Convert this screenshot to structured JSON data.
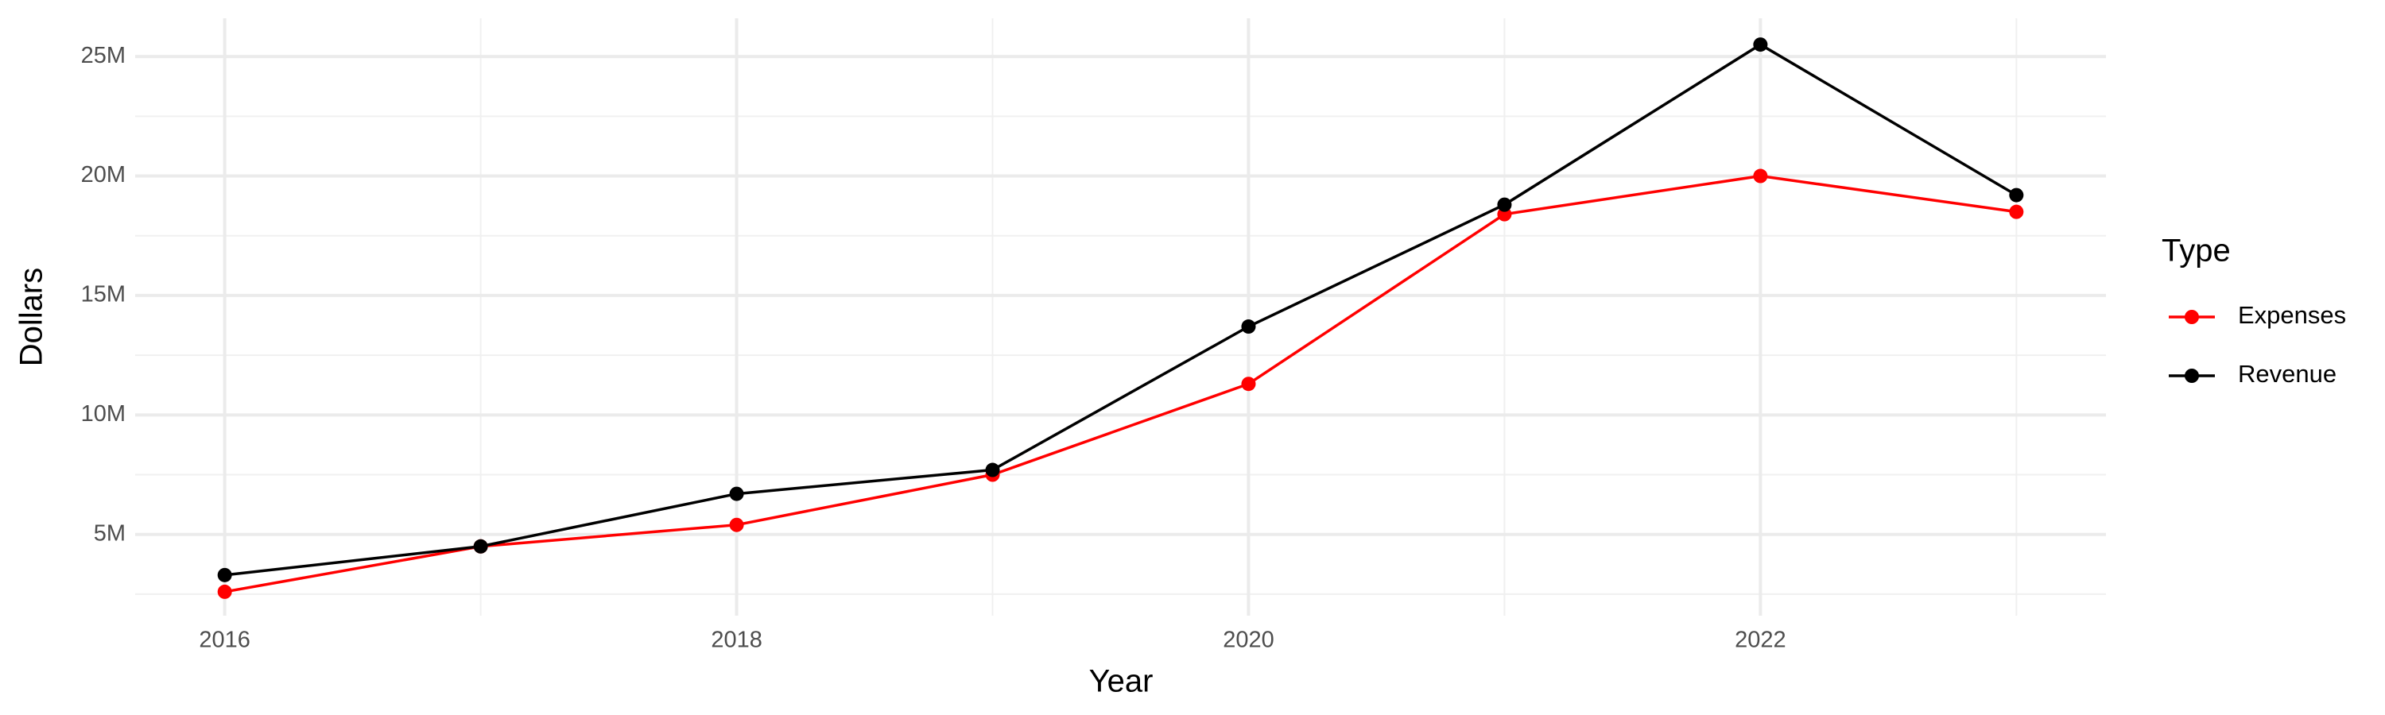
{
  "chart_data": {
    "type": "line",
    "x_label": "Year",
    "y_label": "Dollars",
    "legend_title": "Type",
    "x": [
      2016,
      2017,
      2018,
      2019,
      2020,
      2021,
      2022,
      2023
    ],
    "series": [
      {
        "name": "Expenses",
        "color": "#ff0000",
        "values": [
          2600000,
          4500000,
          5400000,
          7500000,
          11300000,
          18400000,
          20000000,
          18500000
        ]
      },
      {
        "name": "Revenue",
        "color": "#000000",
        "values": [
          3300000,
          4500000,
          6700000,
          7700000,
          13700000,
          18800000,
          25500000,
          19200000
        ]
      }
    ],
    "xlim": [
      2015.65,
      2023.35
    ],
    "xticks": [
      2016,
      2018,
      2020,
      2022
    ],
    "ylim": [
      1600000,
      26600000
    ],
    "yticks": [
      {
        "value": 5000000,
        "label": "5M"
      },
      {
        "value": 10000000,
        "label": "10M"
      },
      {
        "value": 15000000,
        "label": "15M"
      },
      {
        "value": 20000000,
        "label": "20M"
      },
      {
        "value": 25000000,
        "label": "25M"
      }
    ],
    "grid": true,
    "legend": "right"
  }
}
